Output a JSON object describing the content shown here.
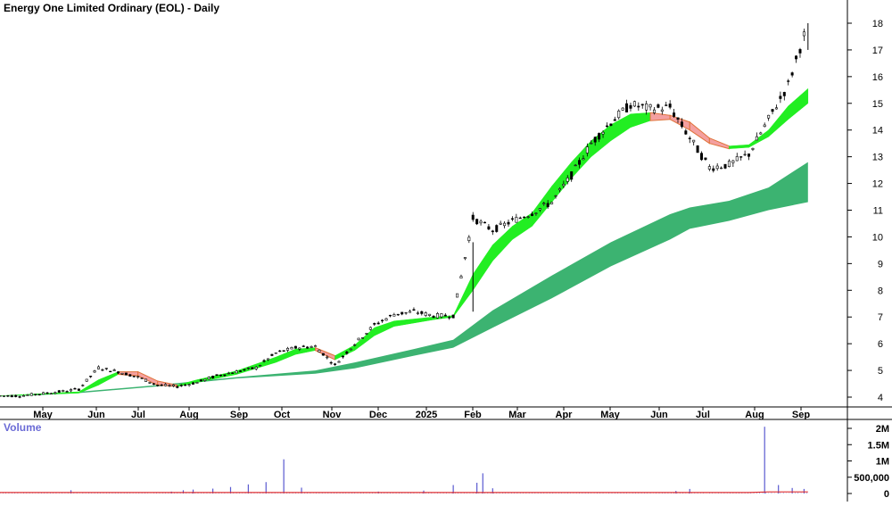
{
  "chart_data": {
    "type": "candlestick",
    "title": "Energy One Limited Ordinary (EOL) - Daily",
    "volume_label": "Volume",
    "x_tick_labels": [
      "May",
      "Jun",
      "Jul",
      "Aug",
      "Sep",
      "Oct",
      "Nov",
      "Dec",
      "2025",
      "Feb",
      "Mar",
      "Apr",
      "May",
      "Jun",
      "Jul",
      "Aug",
      "Sep"
    ],
    "y_ticks": [
      4,
      5,
      6,
      7,
      8,
      9,
      10,
      11,
      12,
      13,
      14,
      15,
      16,
      17,
      18
    ],
    "ylim": [
      3.5,
      18.7
    ],
    "volume_ticks": [
      {
        "value": 0,
        "label": "0"
      },
      {
        "value": 500000,
        "label": "500,000"
      },
      {
        "value": 1000000,
        "label": "1M"
      },
      {
        "value": 1500000,
        "label": "1.5M"
      },
      {
        "value": 2000000,
        "label": "2M"
      }
    ],
    "volume_ylim": [
      0,
      2200000
    ],
    "series": [
      {
        "kind": "price_trend",
        "values": [
          [
            0,
            4.05
          ],
          [
            1,
            4.05
          ],
          [
            2,
            4.12
          ],
          [
            3,
            4.2
          ],
          [
            4,
            4.3
          ],
          [
            5,
            5.1
          ],
          [
            6,
            4.95
          ],
          [
            7,
            4.75
          ],
          [
            8,
            4.45
          ],
          [
            9,
            4.4
          ],
          [
            10,
            4.55
          ],
          [
            11,
            4.8
          ],
          [
            12,
            4.95
          ],
          [
            13,
            5.1
          ],
          [
            14,
            5.65
          ],
          [
            15,
            5.85
          ],
          [
            16,
            5.9
          ],
          [
            17,
            5.2
          ],
          [
            18,
            6.0
          ],
          [
            19,
            6.7
          ],
          [
            20,
            7.1
          ],
          [
            21,
            7.2
          ],
          [
            22,
            7.05
          ],
          [
            23,
            7.05
          ],
          [
            24,
            10.7
          ],
          [
            25,
            10.25
          ],
          [
            26,
            10.6
          ],
          [
            27,
            10.9
          ],
          [
            28,
            11.3
          ],
          [
            29,
            12.3
          ],
          [
            30,
            13.5
          ],
          [
            31,
            14.3
          ],
          [
            32,
            14.95
          ],
          [
            33,
            14.8
          ],
          [
            34,
            14.85
          ],
          [
            35,
            13.7
          ],
          [
            36,
            12.6
          ],
          [
            37,
            12.7
          ],
          [
            38,
            13.1
          ],
          [
            39,
            14.4
          ],
          [
            40,
            15.7
          ],
          [
            41,
            18.0
          ]
        ]
      },
      {
        "kind": "short_term_ribbon",
        "values": [
          [
            0,
            4.05,
            4.05
          ],
          [
            4,
            4.15,
            4.2
          ],
          [
            5,
            4.45,
            4.65
          ],
          [
            6,
            4.85,
            4.95
          ],
          [
            7,
            4.8,
            4.95
          ],
          [
            8,
            4.45,
            4.6
          ],
          [
            9,
            4.4,
            4.45
          ],
          [
            10,
            4.55,
            4.65
          ],
          [
            12,
            4.85,
            4.98
          ],
          [
            14,
            5.3,
            5.5
          ],
          [
            15,
            5.6,
            5.8
          ],
          [
            16,
            5.75,
            5.85
          ],
          [
            17,
            5.4,
            5.55
          ],
          [
            18,
            5.75,
            5.95
          ],
          [
            19,
            6.3,
            6.6
          ],
          [
            20,
            6.65,
            6.85
          ],
          [
            22,
            6.9,
            7.0
          ],
          [
            23,
            7.0,
            7.05
          ],
          [
            24,
            8.0,
            8.6
          ],
          [
            25,
            9.1,
            9.7
          ],
          [
            26,
            9.9,
            10.4
          ],
          [
            27,
            10.4,
            10.9
          ],
          [
            28,
            11.3,
            11.9
          ],
          [
            29,
            12.2,
            12.8
          ],
          [
            30,
            13.0,
            13.6
          ],
          [
            31,
            13.6,
            14.2
          ],
          [
            32,
            14.1,
            14.6
          ],
          [
            33,
            14.35,
            14.65
          ],
          [
            34,
            14.4,
            14.55
          ],
          [
            35,
            14.0,
            14.3
          ],
          [
            36,
            13.5,
            13.7
          ],
          [
            37,
            13.3,
            13.4
          ],
          [
            38,
            13.35,
            13.45
          ],
          [
            39,
            13.75,
            14.0
          ],
          [
            40,
            14.4,
            14.9
          ],
          [
            41,
            15.0,
            15.55
          ]
        ]
      },
      {
        "kind": "long_term_ribbon",
        "values": [
          [
            0,
            4.0,
            4.0
          ],
          [
            4,
            4.15,
            4.2
          ],
          [
            8,
            4.4,
            4.45
          ],
          [
            12,
            4.7,
            4.75
          ],
          [
            16,
            4.88,
            5.0
          ],
          [
            18,
            5.08,
            5.3
          ],
          [
            21,
            5.55,
            5.8
          ],
          [
            23,
            5.85,
            6.15
          ],
          [
            25,
            6.6,
            7.25
          ],
          [
            28,
            7.7,
            8.55
          ],
          [
            31,
            8.9,
            9.8
          ],
          [
            34,
            9.9,
            10.85
          ],
          [
            35,
            10.3,
            11.1
          ],
          [
            37,
            10.6,
            11.35
          ],
          [
            39,
            11.0,
            11.85
          ],
          [
            41,
            11.3,
            12.8
          ]
        ]
      },
      {
        "kind": "volume",
        "values": [
          [
            3.6,
            100000
          ],
          [
            8.7,
            60000
          ],
          [
            9.3,
            100000
          ],
          [
            9.8,
            120000
          ],
          [
            10.8,
            150000
          ],
          [
            11.7,
            200000
          ],
          [
            12.6,
            280000
          ],
          [
            13.5,
            350000
          ],
          [
            14.4,
            1050000
          ],
          [
            15.3,
            180000
          ],
          [
            19.2,
            60000
          ],
          [
            21.5,
            90000
          ],
          [
            23.0,
            260000
          ],
          [
            24.2,
            330000
          ],
          [
            24.5,
            620000
          ],
          [
            25.0,
            160000
          ],
          [
            34.3,
            80000
          ],
          [
            35.0,
            140000
          ],
          [
            38.8,
            2050000
          ],
          [
            39.5,
            260000
          ],
          [
            40.2,
            170000
          ],
          [
            40.8,
            140000
          ]
        ]
      }
    ]
  }
}
